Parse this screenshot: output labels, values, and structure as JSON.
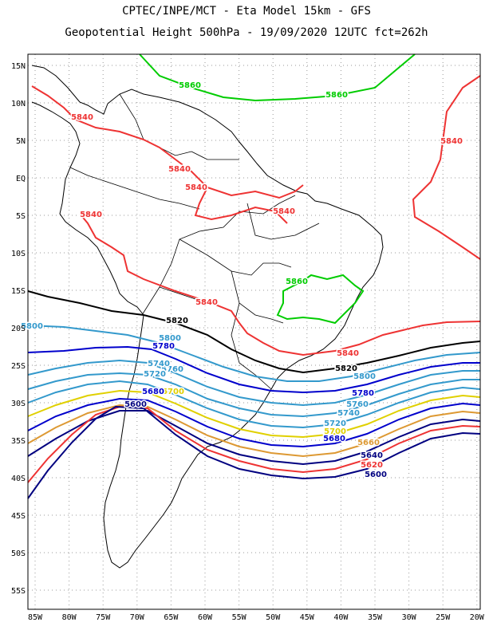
{
  "title_line1": "CPTEC/INPE/MCT -  Eta Model 15km - GFS",
  "title_line2": "Geopotential Height 500hPa - 19/09/2020 12UTC fct=262h",
  "lat_labels": [
    "15N",
    "10N",
    "5N",
    "EQ",
    "5S",
    "10S",
    "15S",
    "20S",
    "25S",
    "30S",
    "35S",
    "40S",
    "45S",
    "50S",
    "55S"
  ],
  "lon_labels": [
    "85W",
    "80W",
    "75W",
    "70W",
    "65W",
    "60W",
    "55W",
    "50W",
    "45W",
    "40W",
    "35W",
    "30W",
    "25W",
    "20W"
  ],
  "contour_labels": [
    {
      "text": "5860",
      "color": "#00cc00"
    },
    {
      "text": "5860",
      "color": "#00cc00"
    },
    {
      "text": "5860",
      "color": "#00cc00"
    },
    {
      "text": "5840",
      "color": "#ee3333"
    },
    {
      "text": "5840",
      "color": "#ee3333"
    },
    {
      "text": "5840",
      "color": "#ee3333"
    },
    {
      "text": "5840",
      "color": "#ee3333"
    },
    {
      "text": "5840",
      "color": "#ee3333"
    },
    {
      "text": "5840",
      "color": "#ee3333"
    },
    {
      "text": "5840",
      "color": "#ee3333"
    },
    {
      "text": "5840",
      "color": "#ee3333"
    },
    {
      "text": "5820",
      "color": "#000000"
    },
    {
      "text": "5820",
      "color": "#000000"
    },
    {
      "text": "5800",
      "color": "#3399cc"
    },
    {
      "text": "5800",
      "color": "#3399cc"
    },
    {
      "text": "5800",
      "color": "#3399cc"
    },
    {
      "text": "5780",
      "color": "#0000cc"
    },
    {
      "text": "5780",
      "color": "#0000cc"
    },
    {
      "text": "5760",
      "color": "#3399cc"
    },
    {
      "text": "5760",
      "color": "#3399cc"
    },
    {
      "text": "5740",
      "color": "#3399cc"
    },
    {
      "text": "5740",
      "color": "#3399cc"
    },
    {
      "text": "5720",
      "color": "#3399cc"
    },
    {
      "text": "5720",
      "color": "#3399cc"
    },
    {
      "text": "5700",
      "color": "#e0d000"
    },
    {
      "text": "5700",
      "color": "#e0d000"
    },
    {
      "text": "5680",
      "color": "#0000cc"
    },
    {
      "text": "5680",
      "color": "#0000cc"
    },
    {
      "text": "5660",
      "color": "#dd9933"
    },
    {
      "text": "5640",
      "color": "#000080"
    },
    {
      "text": "5620",
      "color": "#ee3333"
    },
    {
      "text": "5600",
      "color": "#000080"
    },
    {
      "text": "5600",
      "color": "#000080"
    }
  ]
}
